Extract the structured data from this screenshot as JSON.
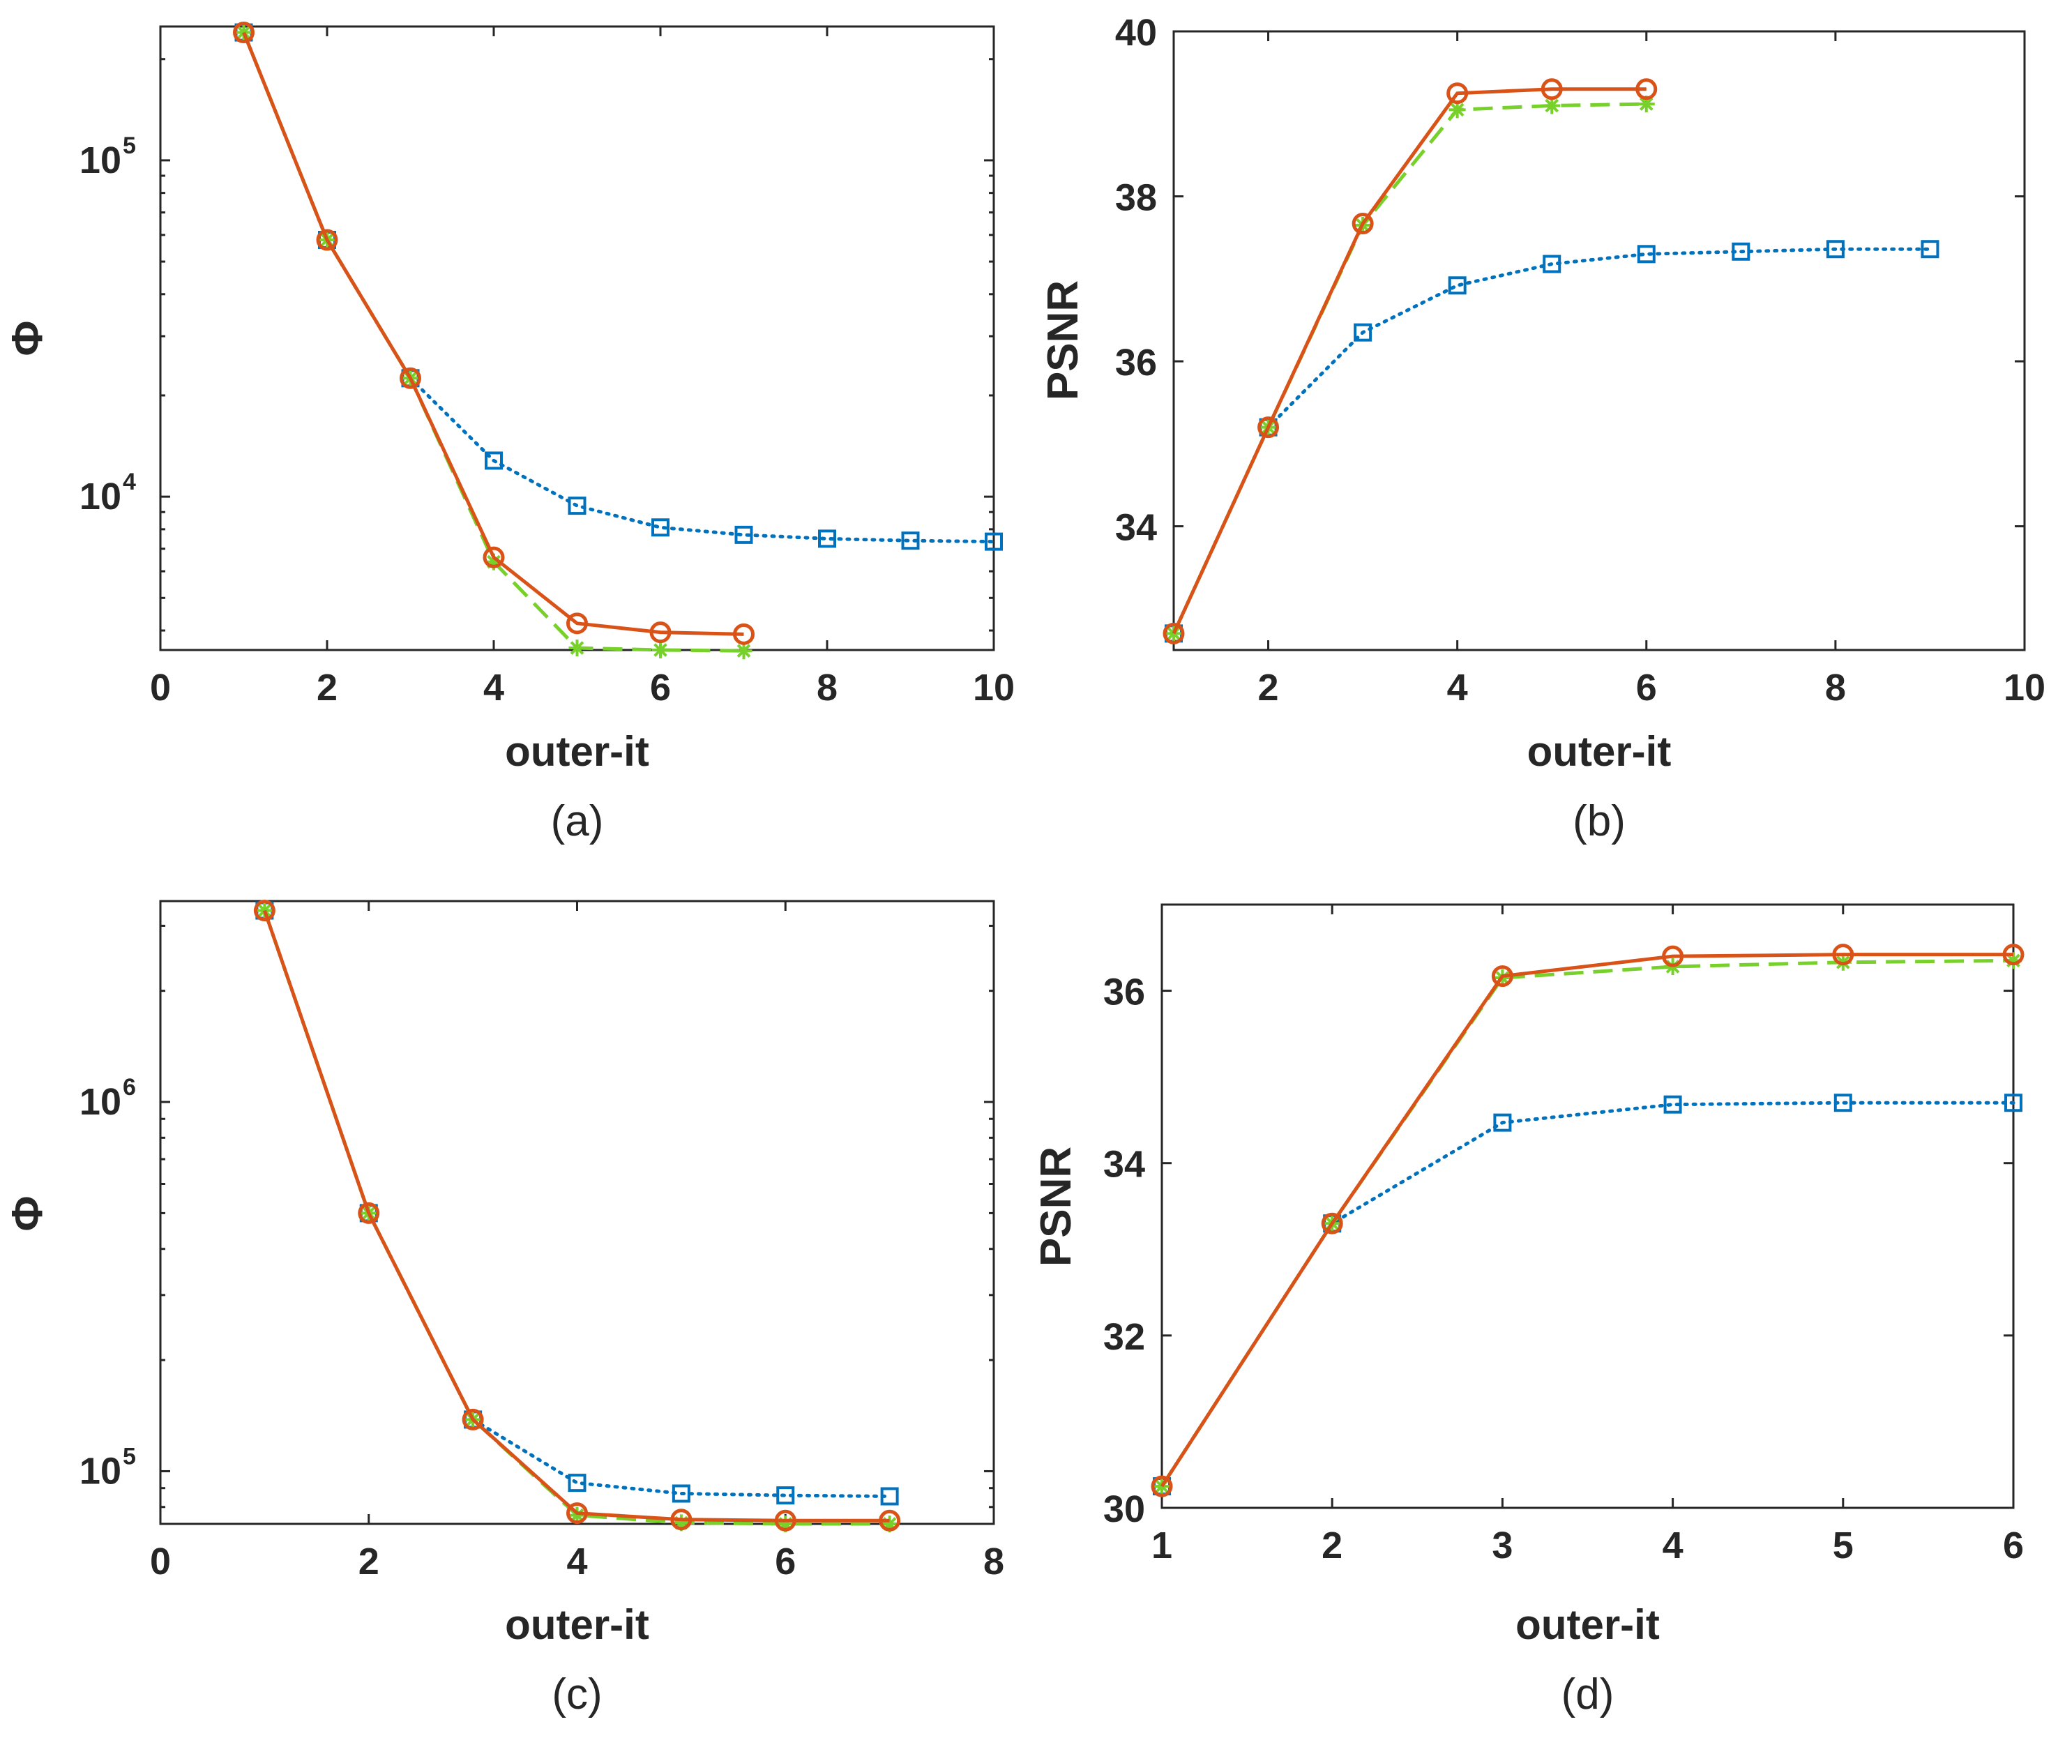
{
  "series_styles": {
    "blue": {
      "color": "#0072BD",
      "marker": "square",
      "dash": "dotted"
    },
    "red": {
      "color": "#D95319",
      "marker": "circle",
      "dash": "solid"
    },
    "green": {
      "color": "#77D12A",
      "marker": "star",
      "dash": "dashed"
    }
  },
  "chart_data": [
    {
      "id": "a",
      "type": "line",
      "yscale": "log",
      "caption": "(a)",
      "xlabel": "outer-it",
      "ylabel": "Φ",
      "xlim": [
        0,
        10
      ],
      "ylim": [
        3500,
        250000
      ],
      "xticks": [
        "0",
        "2",
        "4",
        "6",
        "8",
        "10"
      ],
      "xtick_values": [
        0,
        2,
        4,
        6,
        8,
        10
      ],
      "yticks": [
        {
          "base": "10",
          "exp": "4",
          "value": 10000
        },
        {
          "base": "10",
          "exp": "5",
          "value": 100000
        }
      ],
      "series": [
        {
          "style": "blue",
          "x": [
            1,
            2,
            3,
            4,
            5,
            6,
            7,
            8,
            9,
            10
          ],
          "values": [
            240000,
            58000,
            22500,
            12800,
            9400,
            8100,
            7700,
            7500,
            7400,
            7350
          ]
        },
        {
          "style": "green",
          "x": [
            1,
            2,
            3,
            4,
            5,
            6,
            7
          ],
          "values": [
            240000,
            58000,
            22500,
            6400,
            3550,
            3500,
            3480
          ]
        },
        {
          "style": "red",
          "x": [
            1,
            2,
            3,
            4,
            5,
            6,
            7
          ],
          "values": [
            240000,
            58000,
            22500,
            6600,
            4200,
            3950,
            3900
          ]
        }
      ]
    },
    {
      "id": "b",
      "type": "line",
      "yscale": "linear",
      "caption": "(b)",
      "xlabel": "outer-it",
      "ylabel": "PSNR",
      "xlim": [
        1,
        10
      ],
      "ylim": [
        32.5,
        40
      ],
      "xticks": [
        "2",
        "4",
        "6",
        "8",
        "10"
      ],
      "xtick_values": [
        2,
        4,
        6,
        8,
        10
      ],
      "yticks": [
        {
          "label": "34",
          "value": 34
        },
        {
          "label": "36",
          "value": 36
        },
        {
          "label": "38",
          "value": 38
        },
        {
          "label": "40",
          "value": 40
        }
      ],
      "series": [
        {
          "style": "blue",
          "x": [
            1,
            2,
            3,
            4,
            5,
            6,
            7,
            8,
            9
          ],
          "values": [
            32.7,
            35.2,
            36.35,
            36.92,
            37.18,
            37.3,
            37.33,
            37.36,
            37.36
          ]
        },
        {
          "style": "green",
          "x": [
            1,
            2,
            3,
            4,
            5,
            6
          ],
          "values": [
            32.7,
            35.2,
            37.65,
            39.05,
            39.1,
            39.12
          ]
        },
        {
          "style": "red",
          "x": [
            1,
            2,
            3,
            4,
            5,
            6
          ],
          "values": [
            32.7,
            35.2,
            37.67,
            39.25,
            39.3,
            39.3
          ]
        }
      ]
    },
    {
      "id": "c",
      "type": "line",
      "yscale": "log",
      "caption": "(c)",
      "xlabel": "outer-it",
      "ylabel": "Φ",
      "xlim": [
        0,
        8
      ],
      "ylim": [
        72000,
        3500000
      ],
      "xticks": [
        "0",
        "2",
        "4",
        "6",
        "8"
      ],
      "xtick_values": [
        0,
        2,
        4,
        6,
        8
      ],
      "yticks": [
        {
          "base": "10",
          "exp": "5",
          "value": 100000
        },
        {
          "base": "10",
          "exp": "6",
          "value": 1000000
        }
      ],
      "series": [
        {
          "style": "blue",
          "x": [
            1,
            2,
            3,
            4,
            5,
            6,
            7
          ],
          "values": [
            3300000,
            500000,
            138000,
            93000,
            87000,
            86000,
            85500
          ]
        },
        {
          "style": "green",
          "x": [
            1,
            2,
            3,
            4,
            5,
            6,
            7
          ],
          "values": [
            3300000,
            500000,
            138000,
            76000,
            72500,
            72000,
            72000
          ]
        },
        {
          "style": "red",
          "x": [
            1,
            2,
            3,
            4,
            5,
            6,
            7
          ],
          "values": [
            3300000,
            500000,
            138000,
            77000,
            74000,
            73500,
            73500
          ]
        }
      ]
    },
    {
      "id": "d",
      "type": "line",
      "yscale": "linear",
      "caption": "(d)",
      "xlabel": "outer-it",
      "ylabel": "PSNR",
      "xlim": [
        1,
        6
      ],
      "ylim": [
        30,
        37
      ],
      "xticks": [
        "1",
        "2",
        "3",
        "4",
        "5",
        "6"
      ],
      "xtick_values": [
        1,
        2,
        3,
        4,
        5,
        6
      ],
      "yticks": [
        {
          "label": "30",
          "value": 30
        },
        {
          "label": "32",
          "value": 32
        },
        {
          "label": "34",
          "value": 34
        },
        {
          "label": "36",
          "value": 36
        }
      ],
      "series": [
        {
          "style": "blue",
          "x": [
            1,
            2,
            3,
            4,
            5,
            6
          ],
          "values": [
            30.25,
            33.3,
            34.47,
            34.68,
            34.7,
            34.7
          ]
        },
        {
          "style": "green",
          "x": [
            1,
            2,
            3,
            4,
            5,
            6
          ],
          "values": [
            30.25,
            33.3,
            36.15,
            36.28,
            36.33,
            36.35
          ]
        },
        {
          "style": "red",
          "x": [
            1,
            2,
            3,
            4,
            5,
            6
          ],
          "values": [
            30.25,
            33.3,
            36.17,
            36.4,
            36.42,
            36.42
          ]
        }
      ]
    }
  ]
}
